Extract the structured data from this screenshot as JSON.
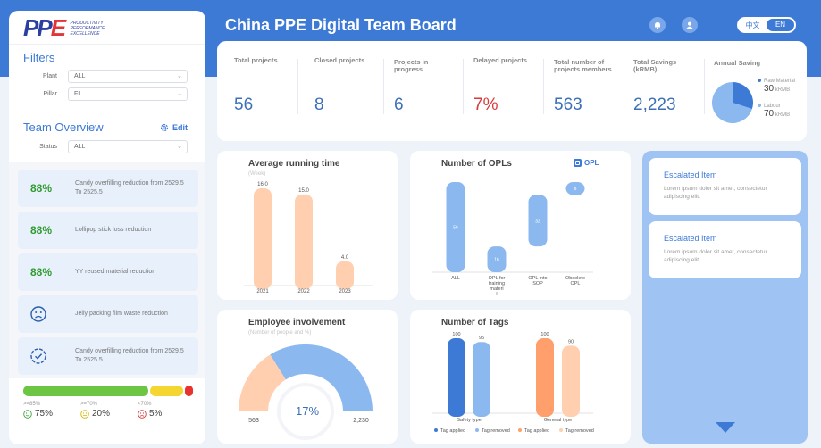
{
  "header": {
    "title": "China PPE Digital Team Board",
    "lang_zh": "中文",
    "lang_en": "EN"
  },
  "logo": {
    "text_a": "PP",
    "text_b": "E",
    "sub1": "PRODUCTIVITY",
    "sub2": "PERFORMANCE",
    "sub3": "EXCELLENCE"
  },
  "filters": {
    "title": "Filters",
    "plant_label": "Plant",
    "plant_value": "ALL",
    "pillar_label": "Pillar",
    "pillar_value": "FI"
  },
  "overview": {
    "title": "Team Overview",
    "edit_label": "Edit",
    "status_label": "Status",
    "status_value": "ALL",
    "projects": [
      {
        "pct": "88%",
        "text": "Candy overfilling reduction from 2529.5 To 2525.5"
      },
      {
        "pct": "88%",
        "text": "Lollipop stick loss reduction"
      },
      {
        "pct": "88%",
        "text": "YY reused material reduction"
      },
      {
        "pct": "",
        "text": "Jelly packing film waste reduction",
        "icon": "sad-face-icon"
      },
      {
        "pct": "",
        "text": "Candy overfilling reduction from 2529.5 To 2525.5",
        "icon": "check-circle-icon"
      }
    ],
    "progress": [
      {
        "threshold": ">=85%",
        "value": "75%",
        "share": 75,
        "color": "#6cc644",
        "icon": "smile-icon"
      },
      {
        "threshold": ">=70%",
        "value": "20%",
        "share": 20,
        "color": "#f5d630",
        "icon": "neutral-face-icon"
      },
      {
        "threshold": "<70%",
        "value": "5%",
        "share": 5,
        "color": "#e8322e",
        "icon": "sad-face-icon"
      }
    ]
  },
  "kpis": [
    {
      "label": "Total projects",
      "value": "56",
      "color": "#3d6fb7"
    },
    {
      "label": "Closed projects",
      "value": "8",
      "color": "#3d6fb7"
    },
    {
      "label": "Projects in progress",
      "value": "6",
      "color": "#3d6fb7"
    },
    {
      "label": "Delayed projects",
      "value": "7%",
      "color": "#d83a3a"
    },
    {
      "label": "Total number of projects members",
      "value": "563",
      "color": "#3d6fb7"
    },
    {
      "label": "Total  Savings (kRMB)",
      "value": "2,223",
      "color": "#3d6fb7"
    }
  ],
  "annual_saving": {
    "title": "Annual Saving",
    "items": [
      {
        "label": "Raw Material",
        "value": "30",
        "unit": "kRMB",
        "color": "#3d7ad6"
      },
      {
        "label": "Labour",
        "value": "70",
        "unit": "kRMB",
        "color": "#8cb8f0"
      }
    ]
  },
  "charts": {
    "running_time": {
      "title": "Average running time",
      "subtitle": "(Week)",
      "chart_data": {
        "type": "bar",
        "categories": [
          "2021",
          "2022",
          "2023"
        ],
        "values": [
          16.0,
          15.0,
          4.0
        ],
        "labels": [
          "16.0",
          "15.0",
          "4.0"
        ],
        "ylim": [
          0,
          16
        ],
        "color": "#ffcfb0"
      }
    },
    "opls": {
      "title": "Number of OPLs",
      "badge": "OPL",
      "chart_data": {
        "type": "bar",
        "categories": [
          "ALL",
          "OPL for training materi l",
          "OPL into SOP",
          "Obsolete OPL"
        ],
        "values": [
          56,
          16,
          32,
          8
        ],
        "labels": [
          "56",
          "16",
          "32",
          "8"
        ],
        "note": "waterfall",
        "ylim": [
          0,
          56
        ],
        "color": "#8cb8f0"
      }
    },
    "involvement": {
      "title": "Employee involvement",
      "subtitle": "(Number of people and %)",
      "chart_data": {
        "type": "pie",
        "values": [
          563,
          2230
        ],
        "labels": [
          "563",
          "2,230"
        ],
        "center": "17%",
        "percent": 17,
        "colors": [
          "#ffcfb0",
          "#8cb8f0"
        ]
      }
    },
    "tags": {
      "title": "Number of Tags",
      "chart_data": {
        "type": "bar",
        "categories": [
          "Safety type",
          "General type"
        ],
        "series": [
          {
            "name": "Tag applied",
            "values": [
              100,
              100
            ],
            "color": "#3d7ad6",
            "color2": "#ff9f6b"
          },
          {
            "name": "Tag removed",
            "values": [
              95,
              90
            ],
            "color": "#8cb8f0",
            "color2": "#ffcfb0"
          }
        ],
        "legend": [
          {
            "name": "Tag applied",
            "color": "#3d7ad6"
          },
          {
            "name": "Tag removed",
            "color": "#8cb8f0"
          },
          {
            "name": "Tag applied",
            "color": "#ff9f6b"
          },
          {
            "name": "Tag removed",
            "color": "#ffcfb0"
          }
        ],
        "ylim": [
          0,
          100
        ]
      }
    }
  },
  "escalated": [
    {
      "title": "Escalated Item",
      "desc": "Lorem ipsum dolor sit amet, consectetur adipiscing elit."
    },
    {
      "title": "Escalated Item",
      "desc": "Lorem ipsum dolor sit amet, consectetur adipiscing elit."
    }
  ]
}
